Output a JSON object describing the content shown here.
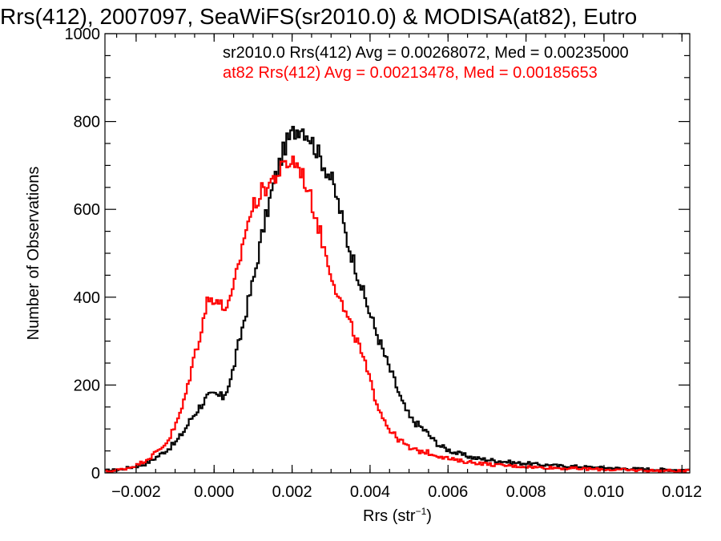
{
  "colors": {
    "series_1": "#000000",
    "series_2": "#ff0000",
    "axes": "#000000",
    "background": "#ffffff"
  },
  "chart_data": {
    "type": "line",
    "subtype": "step histogram",
    "title": "Rrs(412), 2007097, SeaWiFS(sr2010.0) & MODISA(at82), Eutro",
    "xlabel": "Rrs (str",
    "xlabel_sup": "−1",
    "xlabel_close": ")",
    "ylabel": "Number of Observations",
    "xlim": [
      -0.0028,
      0.0122
    ],
    "ylim": [
      0,
      1000
    ],
    "xticks": [
      -0.002,
      0.0,
      0.002,
      0.004,
      0.006,
      0.008,
      0.01,
      0.012
    ],
    "xtick_labels": [
      "−0.002",
      "0.000",
      "0.002",
      "0.004",
      "0.006",
      "0.008",
      "0.010",
      "0.012"
    ],
    "yticks": [
      0,
      200,
      400,
      600,
      800,
      1000
    ],
    "ytick_labels": [
      "0",
      "200",
      "400",
      "600",
      "800",
      "1000"
    ],
    "grid": false,
    "legend": "top-right, text annotations",
    "annotations": [
      {
        "text": "sr2010.0 Rrs(412) Avg = 0.00268072, Med = 0.00235000",
        "color": "#000000"
      },
      {
        "text": "at82 Rrs(412) Avg = 0.00213478, Med = 0.00185653",
        "color": "#ff0000"
      }
    ],
    "series": [
      {
        "color": "#000000",
        "x": [
          -0.0028,
          -0.0026,
          -0.0024,
          -0.0022,
          -0.002,
          -0.0018,
          -0.0016,
          -0.0014,
          -0.0012,
          -0.001,
          -0.0008,
          -0.0006,
          -0.0004,
          -0.0002,
          0.0,
          0.0002,
          0.0004,
          0.0006,
          0.0008,
          0.001,
          0.0012,
          0.0014,
          0.0016,
          0.0018,
          0.002,
          0.0022,
          0.0024,
          0.0026,
          0.0028,
          0.003,
          0.0032,
          0.0034,
          0.0036,
          0.0038,
          0.004,
          0.0042,
          0.0044,
          0.0046,
          0.0048,
          0.005,
          0.0052,
          0.0054,
          0.0056,
          0.0058,
          0.006,
          0.0062,
          0.0064,
          0.0066,
          0.0068,
          0.007,
          0.0072,
          0.0074,
          0.0076,
          0.0078,
          0.008,
          0.0082,
          0.0084,
          0.0086,
          0.0088,
          0.009,
          0.0092,
          0.0094,
          0.0096,
          0.0098,
          0.01,
          0.0102,
          0.0104,
          0.0106,
          0.0108,
          0.011,
          0.0112,
          0.0114,
          0.0116,
          0.0118,
          0.012
        ],
        "y": [
          5,
          6,
          8,
          12,
          15,
          20,
          30,
          42,
          55,
          70,
          95,
          125,
          150,
          172,
          178,
          172,
          210,
          290,
          370,
          445,
          540,
          620,
          690,
          745,
          775,
          790,
          770,
          735,
          700,
          665,
          600,
          525,
          470,
          410,
          355,
          305,
          255,
          210,
          160,
          125,
          110,
          95,
          75,
          60,
          52,
          45,
          40,
          35,
          32,
          30,
          28,
          26,
          24,
          22,
          22,
          20,
          18,
          18,
          16,
          15,
          15,
          14,
          13,
          12,
          12,
          11,
          10,
          10,
          9,
          9,
          8,
          8,
          7,
          7,
          7
        ]
      },
      {
        "color": "#ff0000",
        "x": [
          -0.0028,
          -0.0026,
          -0.0024,
          -0.0022,
          -0.002,
          -0.0018,
          -0.0016,
          -0.0014,
          -0.0012,
          -0.001,
          -0.0008,
          -0.0006,
          -0.0004,
          -0.0002,
          0.0,
          0.0002,
          0.0004,
          0.0006,
          0.0008,
          0.001,
          0.0012,
          0.0014,
          0.0016,
          0.0018,
          0.002,
          0.0022,
          0.0024,
          0.0026,
          0.0028,
          0.003,
          0.0032,
          0.0034,
          0.0036,
          0.0038,
          0.004,
          0.0042,
          0.0044,
          0.0046,
          0.0048,
          0.005,
          0.0052,
          0.0054,
          0.0056,
          0.0058,
          0.006,
          0.0062,
          0.0064,
          0.0066,
          0.0068,
          0.007,
          0.0072,
          0.0074,
          0.0076,
          0.0078,
          0.008,
          0.0082,
          0.0084,
          0.0086,
          0.0088,
          0.009,
          0.0092,
          0.0094,
          0.0096,
          0.0098,
          0.01,
          0.0102,
          0.0104,
          0.0106,
          0.0108,
          0.011,
          0.0112,
          0.0114,
          0.0116,
          0.0118,
          0.012
        ],
        "y": [
          3,
          5,
          8,
          12,
          18,
          28,
          40,
          55,
          75,
          110,
          160,
          240,
          310,
          390,
          400,
          375,
          390,
          470,
          560,
          610,
          640,
          660,
          680,
          700,
          712,
          690,
          640,
          580,
          510,
          450,
          395,
          350,
          310,
          260,
          200,
          150,
          110,
          85,
          70,
          55,
          50,
          48,
          42,
          38,
          32,
          28,
          26,
          24,
          22,
          20,
          18,
          17,
          16,
          15,
          14,
          13,
          12,
          12,
          11,
          10,
          10,
          9,
          9,
          8,
          8,
          7,
          7,
          6,
          6,
          6,
          5,
          5,
          5,
          4,
          4
        ]
      }
    ]
  }
}
